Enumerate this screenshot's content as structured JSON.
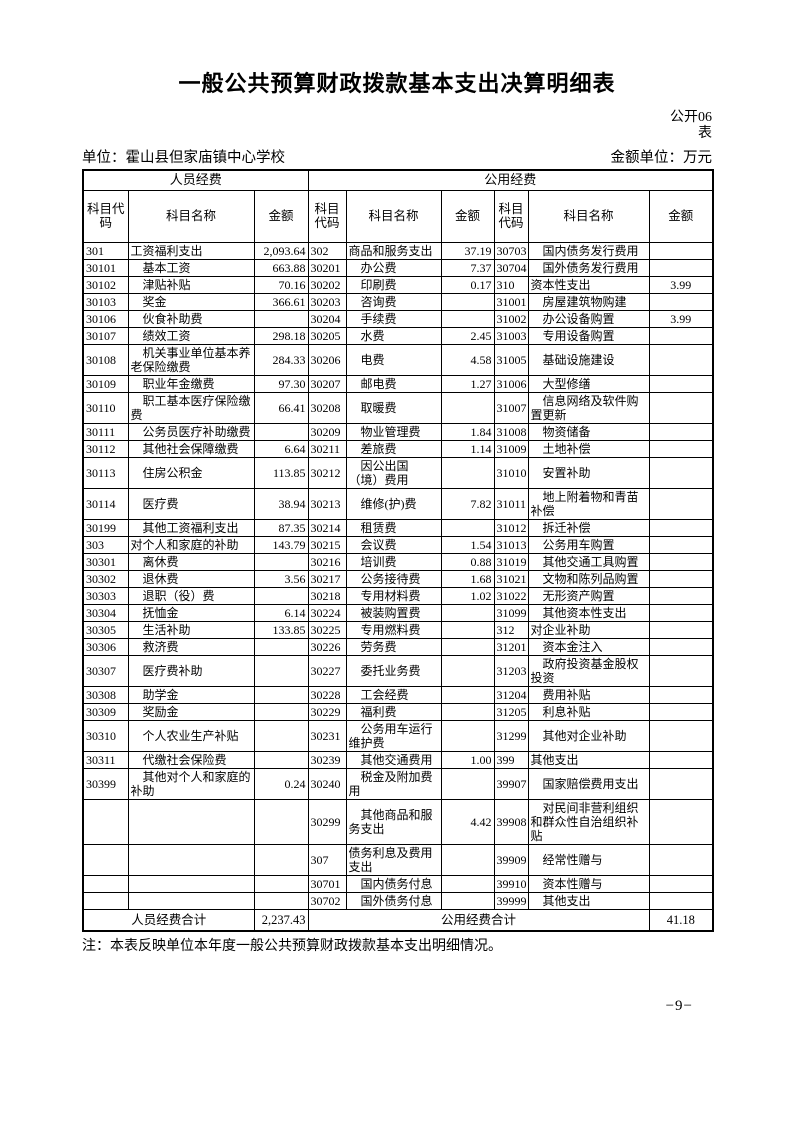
{
  "page": {
    "title": "一般公共预算财政拨款基本支出决算明细表",
    "doc_code_line1": "公开06",
    "doc_code_line2": "表",
    "unit_label": "单位：霍山县但家庙镇中心学校",
    "amount_unit_label": "金额单位：万元",
    "note": "注：本表反映单位本年度一般公共预算财政拨款基本支出明细情况。",
    "page_number": "−9−"
  },
  "table": {
    "group_headers": [
      "人员经费",
      "公用经费"
    ],
    "col_headers": [
      "科目代码",
      "科目名称",
      "金额",
      "科目代码",
      "科目名称",
      "金额",
      "科目代码",
      "科目名称",
      "金额"
    ],
    "rows": [
      [
        "301",
        "工资福利支出",
        "2,093.64",
        "302",
        "商品和服务支出",
        "37.19",
        "30703",
        "国内债务发行费用",
        ""
      ],
      [
        "30101",
        "基本工资",
        "663.88",
        "30201",
        "办公费",
        "7.37",
        "30704",
        "国外债务发行费用",
        ""
      ],
      [
        "30102",
        "津贴补贴",
        "70.16",
        "30202",
        "印刷费",
        "0.17",
        "310",
        "资本性支出",
        "3.99"
      ],
      [
        "30103",
        "奖金",
        "366.61",
        "30203",
        "咨询费",
        "",
        "31001",
        "房屋建筑物购建",
        ""
      ],
      [
        "30106",
        "伙食补助费",
        "",
        "30204",
        "手续费",
        "",
        "31002",
        "办公设备购置",
        "3.99"
      ],
      [
        "30107",
        "绩效工资",
        "298.18",
        "30205",
        "水费",
        "2.45",
        "31003",
        "专用设备购置",
        ""
      ],
      [
        "30108",
        "机关事业单位基本养老保险缴费",
        "284.33",
        "30206",
        "电费",
        "4.58",
        "31005",
        "基础设施建设",
        ""
      ],
      [
        "30109",
        "职业年金缴费",
        "97.30",
        "30207",
        "邮电费",
        "1.27",
        "31006",
        "大型修缮",
        ""
      ],
      [
        "30110",
        "职工基本医疗保险缴费",
        "66.41",
        "30208",
        "取暖费",
        "",
        "31007",
        "信息网络及软件购置更新",
        ""
      ],
      [
        "30111",
        "公务员医疗补助缴费",
        "",
        "30209",
        "物业管理费",
        "1.84",
        "31008",
        "物资储备",
        ""
      ],
      [
        "30112",
        "其他社会保障缴费",
        "6.64",
        "30211",
        "差旅费",
        "1.14",
        "31009",
        "土地补偿",
        ""
      ],
      [
        "30113",
        "住房公积金",
        "113.85",
        "30212",
        "因公出国（境）费用",
        "",
        "31010",
        "安置补助",
        ""
      ],
      [
        "30114",
        "医疗费",
        "38.94",
        "30213",
        "维修(护)费",
        "7.82",
        "31011",
        "地上附着物和青苗补偿",
        ""
      ],
      [
        "30199",
        "其他工资福利支出",
        "87.35",
        "30214",
        "租赁费",
        "",
        "31012",
        "拆迁补偿",
        ""
      ],
      [
        "303",
        "对个人和家庭的补助",
        "143.79",
        "30215",
        "会议费",
        "1.54",
        "31013",
        "公务用车购置",
        ""
      ],
      [
        "30301",
        "离休费",
        "",
        "30216",
        "培训费",
        "0.88",
        "31019",
        "其他交通工具购置",
        ""
      ],
      [
        "30302",
        "退休费",
        "3.56",
        "30217",
        "公务接待费",
        "1.68",
        "31021",
        "文物和陈列品购置",
        ""
      ],
      [
        "30303",
        "退职（役）费",
        "",
        "30218",
        "专用材料费",
        "1.02",
        "31022",
        "无形资产购置",
        ""
      ],
      [
        "30304",
        "抚恤金",
        "6.14",
        "30224",
        "被装购置费",
        "",
        "31099",
        "其他资本性支出",
        ""
      ],
      [
        "30305",
        "生活补助",
        "133.85",
        "30225",
        "专用燃料费",
        "",
        "312",
        "对企业补助",
        ""
      ],
      [
        "30306",
        "救济费",
        "",
        "30226",
        "劳务费",
        "",
        "31201",
        "资本金注入",
        ""
      ],
      [
        "30307",
        "医疗费补助",
        "",
        "30227",
        "委托业务费",
        "",
        "31203",
        "政府投资基金股权投资",
        ""
      ],
      [
        "30308",
        "助学金",
        "",
        "30228",
        "工会经费",
        "",
        "31204",
        "费用补贴",
        ""
      ],
      [
        "30309",
        "奖励金",
        "",
        "30229",
        "福利费",
        "",
        "31205",
        "利息补贴",
        ""
      ],
      [
        "30310",
        "个人农业生产补贴",
        "",
        "30231",
        "公务用车运行维护费",
        "",
        "31299",
        "其他对企业补助",
        ""
      ],
      [
        "30311",
        "代缴社会保险费",
        "",
        "30239",
        "其他交通费用",
        "1.00",
        "399",
        "其他支出",
        ""
      ],
      [
        "30399",
        "其他对个人和家庭的补助",
        "0.24",
        "30240",
        "税金及附加费用",
        "",
        "39907",
        "国家赔偿费用支出",
        ""
      ],
      [
        "",
        "",
        "",
        "30299",
        "其他商品和服务支出",
        "4.42",
        "39908",
        "对民间非营利组织和群众性自治组织补贴",
        ""
      ],
      [
        "",
        "",
        "",
        "307",
        "债务利息及费用支出",
        "",
        "39909",
        "经常性赠与",
        ""
      ],
      [
        "",
        "",
        "",
        "30701",
        "国内债务付息",
        "",
        "39910",
        "资本性赠与",
        ""
      ],
      [
        "",
        "",
        "",
        "30702",
        "国外债务付息",
        "",
        "39999",
        "其他支出",
        ""
      ]
    ],
    "totals": {
      "personnel_label": "人员经费合计",
      "personnel_amount": "2,237.43",
      "public_label": "公用经费合计",
      "public_amount": "41.18"
    }
  }
}
